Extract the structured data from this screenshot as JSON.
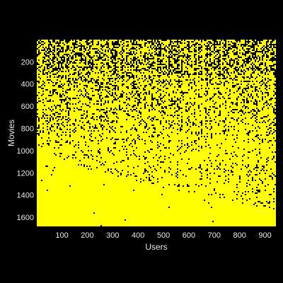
{
  "chart_data": {
    "type": "heatmap",
    "xlabel": "Users",
    "ylabel": "Movies",
    "xlim": [
      1,
      943
    ],
    "ylim": [
      1,
      1682
    ],
    "y_reversed": true,
    "x_ticks": [
      100,
      200,
      300,
      400,
      500,
      600,
      700,
      800,
      900
    ],
    "y_ticks": [
      200,
      400,
      600,
      800,
      1000,
      1200,
      1400,
      1600
    ],
    "colors": {
      "figure_background": "#000000",
      "filled": "#ffff00",
      "empty": "#000000",
      "text": "#e8e8e8"
    },
    "grid": false,
    "legend": "none"
  }
}
